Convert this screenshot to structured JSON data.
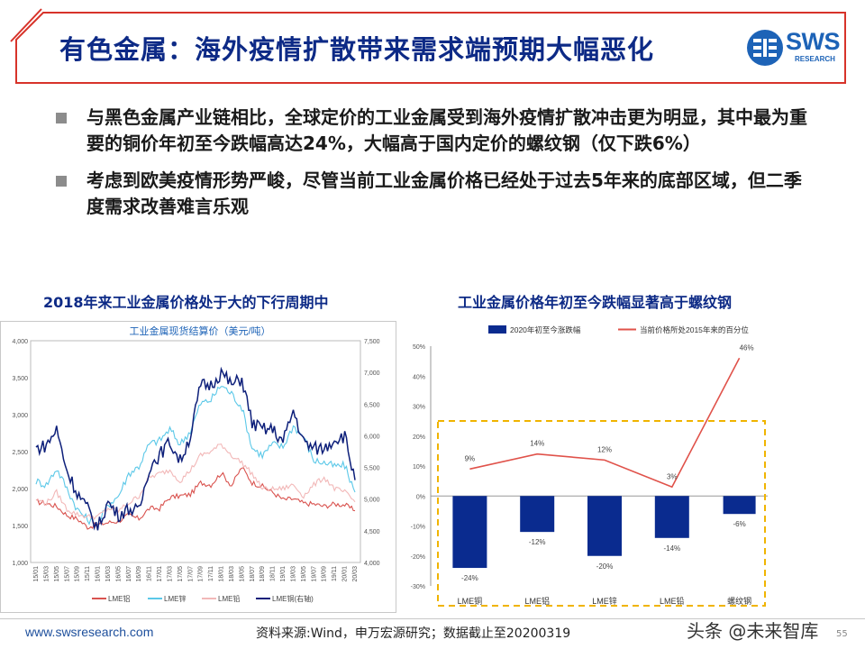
{
  "title": "有色金属：海外疫情扩散带来需求端预期大幅恶化",
  "logo": {
    "word": "SWS",
    "sub": "RESEARCH"
  },
  "bullets": [
    "与黑色金属产业链相比，全球定价的工业金属受到海外疫情扩散冲击更为明显，其中最为重要的铜价年初至今跌幅高达24%，大幅高于国内定价的螺纹钢（仅下跌6%）",
    "考虑到欧美疫情形势严峻，尽管当前工业金属价格已经处于过去5年来的底部区域，但二季度需求改善难言乐观"
  ],
  "left_chart_title": "2018年来工业金属价格处于大的下行周期中",
  "right_chart_title": "工业金属价格年初至今跌幅显著高于螺纹钢",
  "footer": {
    "url": "www.swsresearch.com",
    "source": "资料来源:Wind，申万宏源研究；数据截止至20200319",
    "watermark": "头条 @未来智库",
    "page": "55"
  },
  "colors": {
    "navy": "#0d2a86",
    "bar": "#0a2b8f",
    "line_red": "#e0524a",
    "dash": "#f0b400"
  },
  "chart_data": [
    {
      "type": "line",
      "title": "工业金属现货结算价（美元/吨）",
      "x_ticks": [
        "15/01",
        "15/03",
        "15/05",
        "15/07",
        "15/09",
        "15/11",
        "16/01",
        "16/03",
        "16/05",
        "16/07",
        "16/09",
        "16/11",
        "17/01",
        "17/03",
        "17/05",
        "17/07",
        "17/09",
        "17/11",
        "18/01",
        "18/03",
        "18/05",
        "18/07",
        "18/09",
        "18/11",
        "19/01",
        "19/03",
        "19/05",
        "19/07",
        "19/09",
        "19/11",
        "20/01",
        "20/03"
      ],
      "y_left": {
        "min": 1000,
        "max": 4000,
        "ticks": [
          "1,000",
          "1,500",
          "2,000",
          "2,500",
          "3,000",
          "3,500",
          "4,000"
        ]
      },
      "y_right": {
        "min": 4000,
        "max": 7500,
        "ticks": [
          "4,000",
          "4,500",
          "5,000",
          "5,500",
          "6,000",
          "6,500",
          "7,000",
          "7,500"
        ]
      },
      "series": [
        {
          "name": "LME铝",
          "color": "#d9534f",
          "axis": "left",
          "values": [
            1820,
            1800,
            1760,
            1640,
            1590,
            1480,
            1510,
            1540,
            1560,
            1640,
            1590,
            1730,
            1730,
            1880,
            1900,
            1920,
            2080,
            2050,
            2210,
            2040,
            2290,
            2080,
            2030,
            1950,
            1850,
            1860,
            1800,
            1790,
            1760,
            1790,
            1780,
            1700
          ]
        },
        {
          "name": "LME锌",
          "color": "#5bc8e8",
          "axis": "left",
          "values": [
            2100,
            2050,
            2270,
            2000,
            1720,
            1580,
            1520,
            1780,
            1900,
            2200,
            2300,
            2600,
            2650,
            2800,
            2600,
            2780,
            3150,
            3200,
            3400,
            3280,
            3100,
            2550,
            2450,
            2600,
            2560,
            2850,
            2700,
            2380,
            2350,
            2300,
            2310,
            1950
          ]
        },
        {
          "name": "LME铅",
          "color": "#f2b8b8",
          "axis": "left",
          "values": [
            1850,
            1800,
            1950,
            1720,
            1650,
            1620,
            1620,
            1730,
            1700,
            1800,
            1900,
            2150,
            2200,
            2250,
            2100,
            2250,
            2450,
            2500,
            2600,
            2450,
            2350,
            2200,
            2000,
            1990,
            2000,
            2050,
            1900,
            2050,
            2150,
            2000,
            1950,
            1820
          ]
        },
        {
          "name": "LME铜(右轴)",
          "color": "#0d1f7a",
          "axis": "right",
          "values": [
            5800,
            5850,
            6100,
            5450,
            5100,
            4850,
            4550,
            4950,
            4750,
            4850,
            4800,
            5500,
            5700,
            5900,
            5600,
            6000,
            6800,
            6800,
            7000,
            6800,
            6900,
            6200,
            6100,
            6100,
            5900,
            6400,
            5900,
            5800,
            5800,
            5950,
            6000,
            5300
          ]
        }
      ]
    },
    {
      "type": "bar",
      "categories": [
        "LME铜",
        "LME铝",
        "LME锌",
        "LME铅",
        "螺纹钢"
      ],
      "series": [
        {
          "name": "2020年初至今涨跌幅",
          "kind": "bar",
          "color": "#0a2b8f",
          "values": [
            -24,
            -12,
            -20,
            -14,
            -6
          ],
          "labels": [
            "-24%",
            "-12%",
            "-20%",
            "-14%",
            "-6%"
          ]
        },
        {
          "name": "当前价格所处2015年来的百分位",
          "kind": "line",
          "color": "#e0524a",
          "values": [
            9,
            14,
            12,
            3,
            46
          ],
          "labels": [
            "9%",
            "14%",
            "12%",
            "3%",
            "46%"
          ]
        }
      ],
      "y_ticks": [
        "50%",
        "40%",
        "30%",
        "20%",
        "10%",
        "0%",
        "-10%",
        "-20%",
        "-30%"
      ],
      "ylim": [
        -30,
        50
      ]
    }
  ]
}
